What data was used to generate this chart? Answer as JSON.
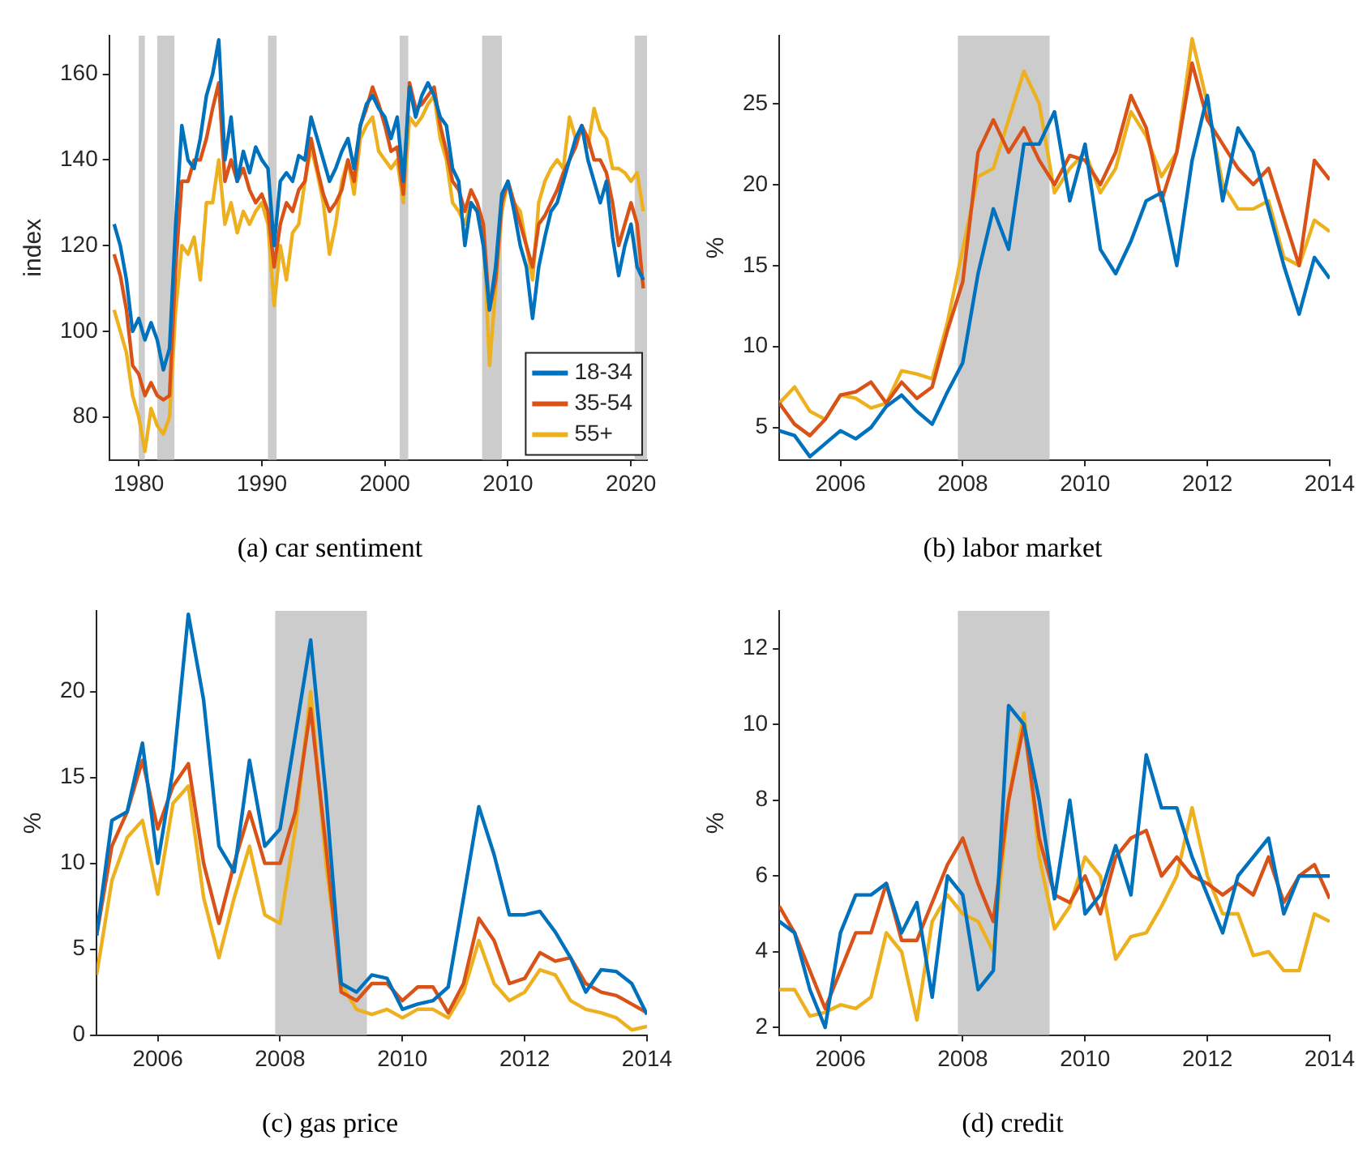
{
  "chart_data": [
    {
      "type": "line",
      "title": "(a) car sentiment",
      "ylabel": "index",
      "legend": "bottom right",
      "x": [
        1978,
        1978.5,
        1979,
        1979.5,
        1980,
        1980.5,
        1981,
        1981.5,
        1982,
        1982.5,
        1983,
        1983.5,
        1984,
        1984.5,
        1985,
        1985.5,
        1986,
        1986.5,
        1987,
        1987.5,
        1988,
        1988.5,
        1989,
        1989.5,
        1990,
        1990.5,
        1991,
        1991.5,
        1992,
        1992.5,
        1993,
        1993.5,
        1994,
        1994.5,
        1995,
        1995.5,
        1996,
        1996.5,
        1997,
        1997.5,
        1998,
        1998.5,
        1999,
        1999.5,
        2000,
        2000.5,
        2001,
        2001.5,
        2002,
        2002.5,
        2003,
        2003.5,
        2004,
        2004.5,
        2005,
        2005.5,
        2006,
        2006.5,
        2007,
        2007.5,
        2008,
        2008.5,
        2009,
        2009.5,
        2010,
        2010.5,
        2011,
        2011.5,
        2012,
        2012.5,
        2013,
        2013.5,
        2014,
        2014.5,
        2015,
        2015.5,
        2016,
        2016.5,
        2017,
        2017.5,
        2018,
        2018.5,
        2019,
        2019.5,
        2020,
        2020.5,
        2021
      ],
      "series": [
        {
          "name": "18-34",
          "color": "#0072bd",
          "values": [
            125,
            120,
            112,
            100,
            103,
            98,
            102,
            98,
            91,
            96,
            125,
            148,
            140,
            138,
            145,
            155,
            160,
            168,
            140,
            150,
            135,
            142,
            137,
            143,
            140,
            138,
            120,
            135,
            137,
            135,
            141,
            140,
            150,
            145,
            140,
            135,
            138,
            142,
            145,
            138,
            148,
            153,
            155,
            152,
            150,
            145,
            150,
            135,
            157,
            150,
            155,
            158,
            155,
            150,
            148,
            138,
            135,
            120,
            130,
            128,
            120,
            105,
            115,
            132,
            135,
            128,
            120,
            115,
            103,
            115,
            122,
            128,
            130,
            135,
            140,
            145,
            148,
            140,
            135,
            130,
            135,
            122,
            113,
            120,
            125,
            115,
            112
          ]
        },
        {
          "name": "35-54",
          "color": "#d95319",
          "values": [
            118,
            113,
            105,
            92,
            90,
            85,
            88,
            85,
            84,
            85,
            115,
            135,
            135,
            140,
            140,
            145,
            152,
            158,
            135,
            140,
            135,
            138,
            133,
            130,
            132,
            128,
            115,
            125,
            130,
            128,
            133,
            135,
            145,
            138,
            132,
            128,
            130,
            133,
            140,
            135,
            148,
            152,
            157,
            153,
            148,
            142,
            143,
            132,
            158,
            152,
            153,
            155,
            157,
            148,
            142,
            135,
            133,
            128,
            133,
            130,
            125,
            105,
            112,
            130,
            135,
            130,
            125,
            120,
            115,
            125,
            127,
            130,
            133,
            137,
            140,
            143,
            148,
            145,
            140,
            140,
            137,
            130,
            120,
            125,
            130,
            125,
            110
          ]
        },
        {
          "name": "55+",
          "color": "#edb120",
          "values": [
            105,
            100,
            95,
            85,
            80,
            72,
            82,
            78,
            76,
            80,
            105,
            120,
            118,
            122,
            112,
            130,
            130,
            140,
            125,
            130,
            123,
            128,
            125,
            128,
            130,
            125,
            106,
            120,
            112,
            123,
            125,
            135,
            143,
            137,
            130,
            118,
            125,
            135,
            140,
            132,
            145,
            148,
            150,
            142,
            140,
            138,
            140,
            130,
            150,
            148,
            150,
            153,
            155,
            145,
            140,
            130,
            128,
            125,
            130,
            128,
            125,
            92,
            110,
            128,
            135,
            130,
            128,
            120,
            112,
            130,
            135,
            138,
            140,
            138,
            150,
            145,
            147,
            143,
            152,
            147,
            145,
            138,
            138,
            137,
            135,
            137,
            128
          ]
        }
      ],
      "xlim": [
        1977.6,
        2021.3
      ],
      "xticks": [
        1980,
        1990,
        2000,
        2010,
        2020
      ],
      "ylim": [
        70,
        169
      ],
      "yticks": [
        80,
        100,
        120,
        140,
        160
      ],
      "bands": [
        {
          "axis": "x",
          "from": 1980.0,
          "to": 1980.5,
          "color": "#cccccc"
        },
        {
          "axis": "x",
          "from": 1981.5,
          "to": 1982.9,
          "color": "#cccccc"
        },
        {
          "axis": "x",
          "from": 1990.5,
          "to": 1991.2,
          "color": "#cccccc"
        },
        {
          "axis": "x",
          "from": 2001.2,
          "to": 2001.9,
          "color": "#cccccc"
        },
        {
          "axis": "x",
          "from": 2007.9,
          "to": 2009.5,
          "color": "#cccccc"
        },
        {
          "axis": "x",
          "from": 2020.3,
          "to": 2021.3,
          "color": "#cccccc"
        }
      ]
    },
    {
      "type": "line",
      "title": "(b) labor market",
      "ylabel": "%",
      "x": [
        2005,
        2005.25,
        2005.5,
        2005.75,
        2006,
        2006.25,
        2006.5,
        2006.75,
        2007,
        2007.25,
        2007.5,
        2007.75,
        2008,
        2008.25,
        2008.5,
        2008.75,
        2009,
        2009.25,
        2009.5,
        2009.75,
        2010,
        2010.25,
        2010.5,
        2010.75,
        2011,
        2011.25,
        2011.5,
        2011.75,
        2012,
        2012.25,
        2012.5,
        2012.75,
        2013,
        2013.25,
        2013.5,
        2013.75,
        2014
      ],
      "series": [
        {
          "color": "#0072bd",
          "values": [
            4.8,
            4.5,
            3.2,
            4.0,
            4.8,
            4.3,
            5.0,
            6.3,
            7.0,
            6.0,
            5.2,
            7.2,
            9.0,
            14.5,
            18.5,
            16.0,
            22.5,
            22.5,
            24.5,
            19.0,
            22.5,
            16.0,
            14.5,
            16.5,
            19.0,
            19.5,
            15.0,
            21.5,
            25.5,
            19.0,
            23.5,
            22.0,
            18.5,
            15.0,
            12.0,
            15.5,
            14.2
          ]
        },
        {
          "color": "#d95319",
          "values": [
            6.5,
            5.2,
            4.5,
            5.5,
            7.0,
            7.2,
            7.8,
            6.5,
            7.8,
            6.8,
            7.5,
            11.0,
            14.0,
            22.0,
            24.0,
            22.0,
            23.5,
            21.5,
            20.0,
            21.8,
            21.5,
            20.0,
            22.0,
            25.5,
            23.5,
            19.0,
            22.0,
            27.5,
            24.0,
            22.5,
            21.0,
            20.0,
            21.0,
            18.0,
            15.0,
            21.5,
            20.3
          ]
        },
        {
          "color": "#edb120",
          "values": [
            6.5,
            7.5,
            6.0,
            5.5,
            7.0,
            6.8,
            6.2,
            6.5,
            8.5,
            8.3,
            8.0,
            11.5,
            16.0,
            20.5,
            21.0,
            24.0,
            27.0,
            25.0,
            19.5,
            21.0,
            22.0,
            19.5,
            21.0,
            24.5,
            23.0,
            20.5,
            22.0,
            29.0,
            25.0,
            20.0,
            18.5,
            18.5,
            19.0,
            15.5,
            15.0,
            17.8,
            17.1
          ]
        }
      ],
      "xlim": [
        2005,
        2014
      ],
      "xticks": [
        2006,
        2008,
        2010,
        2012,
        2014
      ],
      "ylim": [
        3,
        29.2
      ],
      "yticks": [
        5,
        10,
        15,
        20,
        25
      ],
      "bands": [
        {
          "axis": "x",
          "from": 2007.92,
          "to": 2009.42,
          "color": "#cccccc"
        }
      ]
    },
    {
      "type": "line",
      "title": "(c) gas price",
      "ylabel": "%",
      "x": [
        2005,
        2005.25,
        2005.5,
        2005.75,
        2006,
        2006.25,
        2006.5,
        2006.75,
        2007,
        2007.25,
        2007.5,
        2007.75,
        2008,
        2008.25,
        2008.5,
        2008.75,
        2009,
        2009.25,
        2009.5,
        2009.75,
        2010,
        2010.25,
        2010.5,
        2010.75,
        2011,
        2011.25,
        2011.5,
        2011.75,
        2012,
        2012.25,
        2012.5,
        2012.75,
        2013,
        2013.25,
        2013.5,
        2013.75,
        2014
      ],
      "series": [
        {
          "color": "#0072bd",
          "values": [
            5.8,
            12.5,
            13.0,
            17.0,
            10.0,
            15.5,
            24.5,
            19.5,
            11.0,
            9.5,
            16.0,
            11.0,
            12.0,
            17.5,
            23.0,
            14.0,
            3.0,
            2.5,
            3.5,
            3.3,
            1.5,
            1.8,
            2.0,
            2.8,
            8.0,
            13.3,
            10.5,
            7.0,
            7.0,
            7.2,
            6.0,
            4.5,
            2.5,
            3.8,
            3.7,
            3.0,
            1.2
          ]
        },
        {
          "color": "#d95319",
          "values": [
            5.8,
            11.0,
            13.0,
            16.0,
            12.0,
            14.5,
            15.8,
            10.0,
            6.5,
            10.0,
            13.0,
            10.0,
            10.0,
            13.0,
            19.0,
            11.0,
            2.5,
            2.0,
            3.0,
            3.0,
            2.0,
            2.8,
            2.8,
            1.3,
            3.0,
            6.8,
            5.5,
            3.0,
            3.3,
            4.8,
            4.3,
            4.5,
            3.0,
            2.5,
            2.3,
            1.8,
            1.3
          ]
        },
        {
          "color": "#edb120",
          "values": [
            3.5,
            9.0,
            11.5,
            12.5,
            8.2,
            13.5,
            14.5,
            8.0,
            4.5,
            8.0,
            11.0,
            7.0,
            6.5,
            12.0,
            20.0,
            10.0,
            3.0,
            1.5,
            1.2,
            1.5,
            1.0,
            1.5,
            1.5,
            1.0,
            2.5,
            5.5,
            3.0,
            2.0,
            2.5,
            3.8,
            3.5,
            2.0,
            1.5,
            1.3,
            1.0,
            0.3,
            0.5
          ]
        }
      ],
      "xlim": [
        2005,
        2014
      ],
      "xticks": [
        2006,
        2008,
        2010,
        2012,
        2014
      ],
      "ylim": [
        0,
        24.7
      ],
      "yticks": [
        0,
        5,
        10,
        15,
        20
      ],
      "bands": [
        {
          "axis": "x",
          "from": 2007.92,
          "to": 2009.42,
          "color": "#cccccc"
        }
      ]
    },
    {
      "type": "line",
      "title": "(d) credit",
      "ylabel": "%",
      "x": [
        2005,
        2005.25,
        2005.5,
        2005.75,
        2006,
        2006.25,
        2006.5,
        2006.75,
        2007,
        2007.25,
        2007.5,
        2007.75,
        2008,
        2008.25,
        2008.5,
        2008.75,
        2009,
        2009.25,
        2009.5,
        2009.75,
        2010,
        2010.25,
        2010.5,
        2010.75,
        2011,
        2011.25,
        2011.5,
        2011.75,
        2012,
        2012.25,
        2012.5,
        2012.75,
        2013,
        2013.25,
        2013.5,
        2013.75,
        2014
      ],
      "series": [
        {
          "color": "#0072bd",
          "values": [
            4.8,
            4.5,
            3.0,
            2.0,
            4.5,
            5.5,
            5.5,
            5.8,
            4.5,
            5.3,
            2.8,
            6.0,
            5.5,
            3.0,
            3.5,
            10.5,
            10.0,
            8.0,
            5.4,
            8.0,
            5.0,
            5.5,
            6.8,
            5.5,
            9.2,
            7.8,
            7.8,
            6.5,
            5.5,
            4.5,
            6.0,
            6.5,
            7.0,
            5.0,
            6.0,
            6.0,
            6.0
          ]
        },
        {
          "color": "#d95319",
          "values": [
            5.2,
            4.5,
            3.5,
            2.5,
            3.5,
            4.5,
            4.5,
            5.8,
            4.3,
            4.3,
            5.3,
            6.3,
            7.0,
            5.8,
            4.8,
            8.0,
            10.0,
            7.0,
            5.5,
            5.3,
            6.0,
            5.0,
            6.5,
            7.0,
            7.2,
            6.0,
            6.5,
            6.0,
            5.8,
            5.5,
            5.8,
            5.5,
            6.5,
            5.3,
            6.0,
            6.3,
            5.4
          ]
        },
        {
          "color": "#edb120",
          "values": [
            3.0,
            3.0,
            2.3,
            2.4,
            2.6,
            2.5,
            2.8,
            4.5,
            4.0,
            2.2,
            4.8,
            5.5,
            5.0,
            4.8,
            4.0,
            8.0,
            10.3,
            6.5,
            4.6,
            5.2,
            6.5,
            6.0,
            3.8,
            4.4,
            4.5,
            5.2,
            6.0,
            7.8,
            6.0,
            5.0,
            5.0,
            3.9,
            4.0,
            3.5,
            3.5,
            5.0,
            4.8
          ]
        }
      ],
      "xlim": [
        2005,
        2014
      ],
      "xticks": [
        2006,
        2008,
        2010,
        2012,
        2014
      ],
      "ylim": [
        1.8,
        13
      ],
      "yticks": [
        2,
        4,
        6,
        8,
        10,
        12
      ],
      "bands": [
        {
          "axis": "x",
          "from": 2007.92,
          "to": 2009.42,
          "color": "#cccccc"
        }
      ]
    }
  ]
}
